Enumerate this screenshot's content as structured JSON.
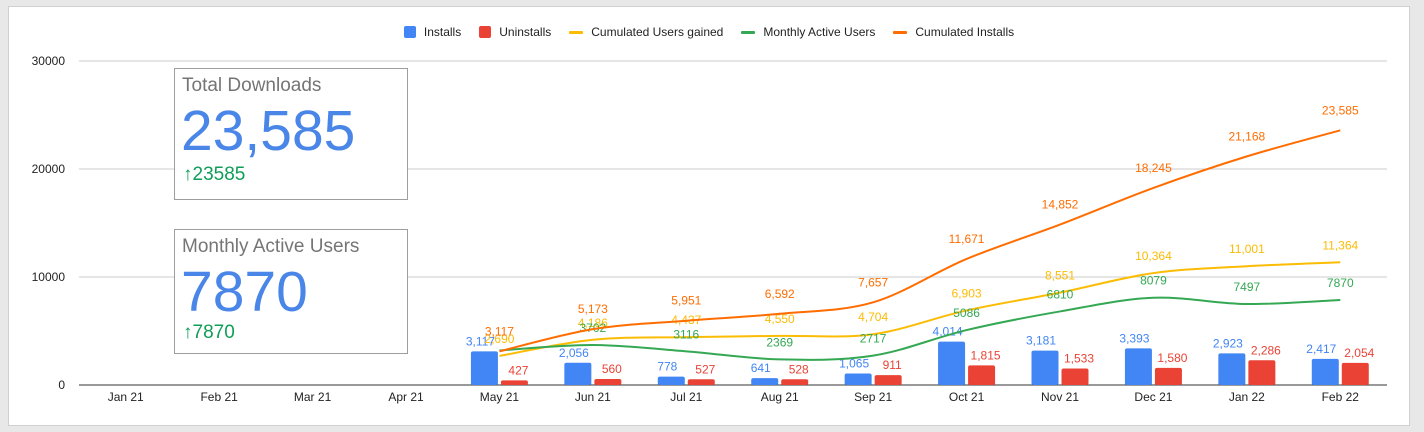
{
  "chart_data": {
    "type": "bar",
    "categories": [
      "Jan 21",
      "Feb 21",
      "Mar 21",
      "Apr 21",
      "May 21",
      "Jun 21",
      "Jul 21",
      "Aug 21",
      "Sep 21",
      "Oct 21",
      "Nov 21",
      "Dec 21",
      "Jan 22",
      "Feb 22"
    ],
    "ylim": [
      0,
      30000
    ],
    "yticks": [
      "0",
      "10000",
      "20000",
      "30000"
    ],
    "grid": true,
    "legend_position": "top",
    "series": [
      {
        "name": "Installs",
        "kind": "bar",
        "color": "#4285f4",
        "values": [
          null,
          null,
          null,
          null,
          3117,
          2056,
          778,
          641,
          1065,
          4014,
          3181,
          3393,
          2923,
          2417
        ],
        "labels": [
          "",
          "",
          "",
          "",
          "3,117",
          "2,056",
          "778",
          "641",
          "1,065",
          "4,014",
          "3,181",
          "3,393",
          "2,923",
          "2,417"
        ]
      },
      {
        "name": "Uninstalls",
        "kind": "bar",
        "color": "#ea4335",
        "values": [
          null,
          null,
          null,
          null,
          427,
          560,
          527,
          528,
          911,
          1815,
          1533,
          1580,
          2286,
          2054
        ],
        "labels": [
          "",
          "",
          "",
          "",
          "427",
          "560",
          "527",
          "528",
          "911",
          "1,815",
          "1,533",
          "1,580",
          "2,286",
          "2,054"
        ]
      },
      {
        "name": "Cumulated Users gained",
        "kind": "line",
        "color": "#fbbc04",
        "values": [
          null,
          null,
          null,
          null,
          2690,
          4186,
          4437,
          4550,
          4704,
          6903,
          8551,
          10364,
          11001,
          11364
        ],
        "labels": [
          "",
          "",
          "",
          "",
          "2,690",
          "4,186",
          "4,437",
          "4,550",
          "4,704",
          "6,903",
          "8,551",
          "10,364",
          "11,001",
          "11,364"
        ]
      },
      {
        "name": "Monthly Active Users",
        "kind": "line",
        "color": "#34a853",
        "values": [
          null,
          null,
          null,
          null,
          3200,
          3702,
          3116,
          2369,
          2717,
          5086,
          6810,
          8079,
          7497,
          7870
        ],
        "labels": [
          "",
          "",
          "",
          "",
          "",
          "3702",
          "3116",
          "2369",
          "2717",
          "5086",
          "6810",
          "8079",
          "7497",
          "7870"
        ]
      },
      {
        "name": "Cumulated Installs",
        "kind": "line",
        "color": "#ff6d01",
        "values": [
          null,
          null,
          null,
          null,
          3117,
          5173,
          5951,
          6592,
          7657,
          11671,
          14852,
          18245,
          21168,
          23585
        ],
        "labels": [
          "",
          "",
          "",
          "",
          "3,117",
          "5,173",
          "5,951",
          "6,592",
          "7,657",
          "11,671",
          "14,852",
          "18,245",
          "21,168",
          "23,585"
        ]
      }
    ]
  },
  "scorecards": [
    {
      "title": "Total Downloads",
      "value": "23,585",
      "delta": "23585",
      "delta_icon": "arrow-up-icon"
    },
    {
      "title": "Monthly Active Users",
      "value": "7870",
      "delta": "7870",
      "delta_icon": "arrow-up-icon"
    }
  ]
}
